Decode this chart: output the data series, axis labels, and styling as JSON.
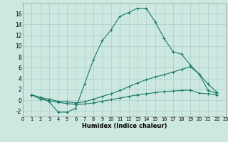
{
  "background_color": "#cce8e0",
  "grid_color": "#aacfc8",
  "line_color": "#1a7a6a",
  "xlabel": "Humidex (Indice chaleur)",
  "xlim": [
    0,
    23
  ],
  "ylim": [
    -3,
    18
  ],
  "xticks": [
    0,
    1,
    2,
    3,
    4,
    5,
    6,
    7,
    8,
    9,
    10,
    11,
    12,
    13,
    14,
    15,
    16,
    17,
    18,
    19,
    20,
    21,
    22,
    23
  ],
  "yticks": [
    -2,
    0,
    2,
    4,
    6,
    8,
    10,
    12,
    14,
    16
  ],
  "lines": [
    {
      "x": [
        1,
        2,
        3,
        4,
        5,
        6,
        7,
        8,
        9,
        10,
        11,
        12,
        13,
        14,
        15,
        16,
        17,
        18,
        19,
        20,
        21,
        22
      ],
      "y": [
        1.0,
        0.5,
        -0.3,
        -2.2,
        -2.2,
        -1.5,
        3.0,
        7.5,
        11.0,
        13.0,
        15.5,
        16.2,
        17.0,
        17.0,
        14.5,
        11.5,
        9.0,
        8.5,
        6.5,
        4.8,
        3.0,
        1.5
      ]
    },
    {
      "x": [
        1,
        2,
        3,
        4,
        5,
        6,
        7,
        8,
        9,
        10,
        11,
        12,
        13,
        14,
        15,
        16,
        17,
        18,
        19,
        20,
        21,
        22
      ],
      "y": [
        1.0,
        0.5,
        0.2,
        -0.2,
        -0.3,
        -0.5,
        -0.3,
        0.2,
        0.7,
        1.2,
        1.8,
        2.5,
        3.2,
        3.8,
        4.3,
        4.7,
        5.2,
        5.7,
        6.2,
        4.8,
        1.8,
        1.3
      ]
    },
    {
      "x": [
        1,
        2,
        3,
        4,
        5,
        6,
        7,
        8,
        9,
        10,
        11,
        12,
        13,
        14,
        15,
        16,
        17,
        18,
        19,
        20,
        21,
        22
      ],
      "y": [
        1.0,
        0.2,
        -0.1,
        -0.4,
        -0.6,
        -0.8,
        -0.7,
        -0.5,
        -0.2,
        0.1,
        0.4,
        0.7,
        1.0,
        1.2,
        1.4,
        1.6,
        1.7,
        1.8,
        1.9,
        1.3,
        1.2,
        1.0
      ]
    }
  ]
}
